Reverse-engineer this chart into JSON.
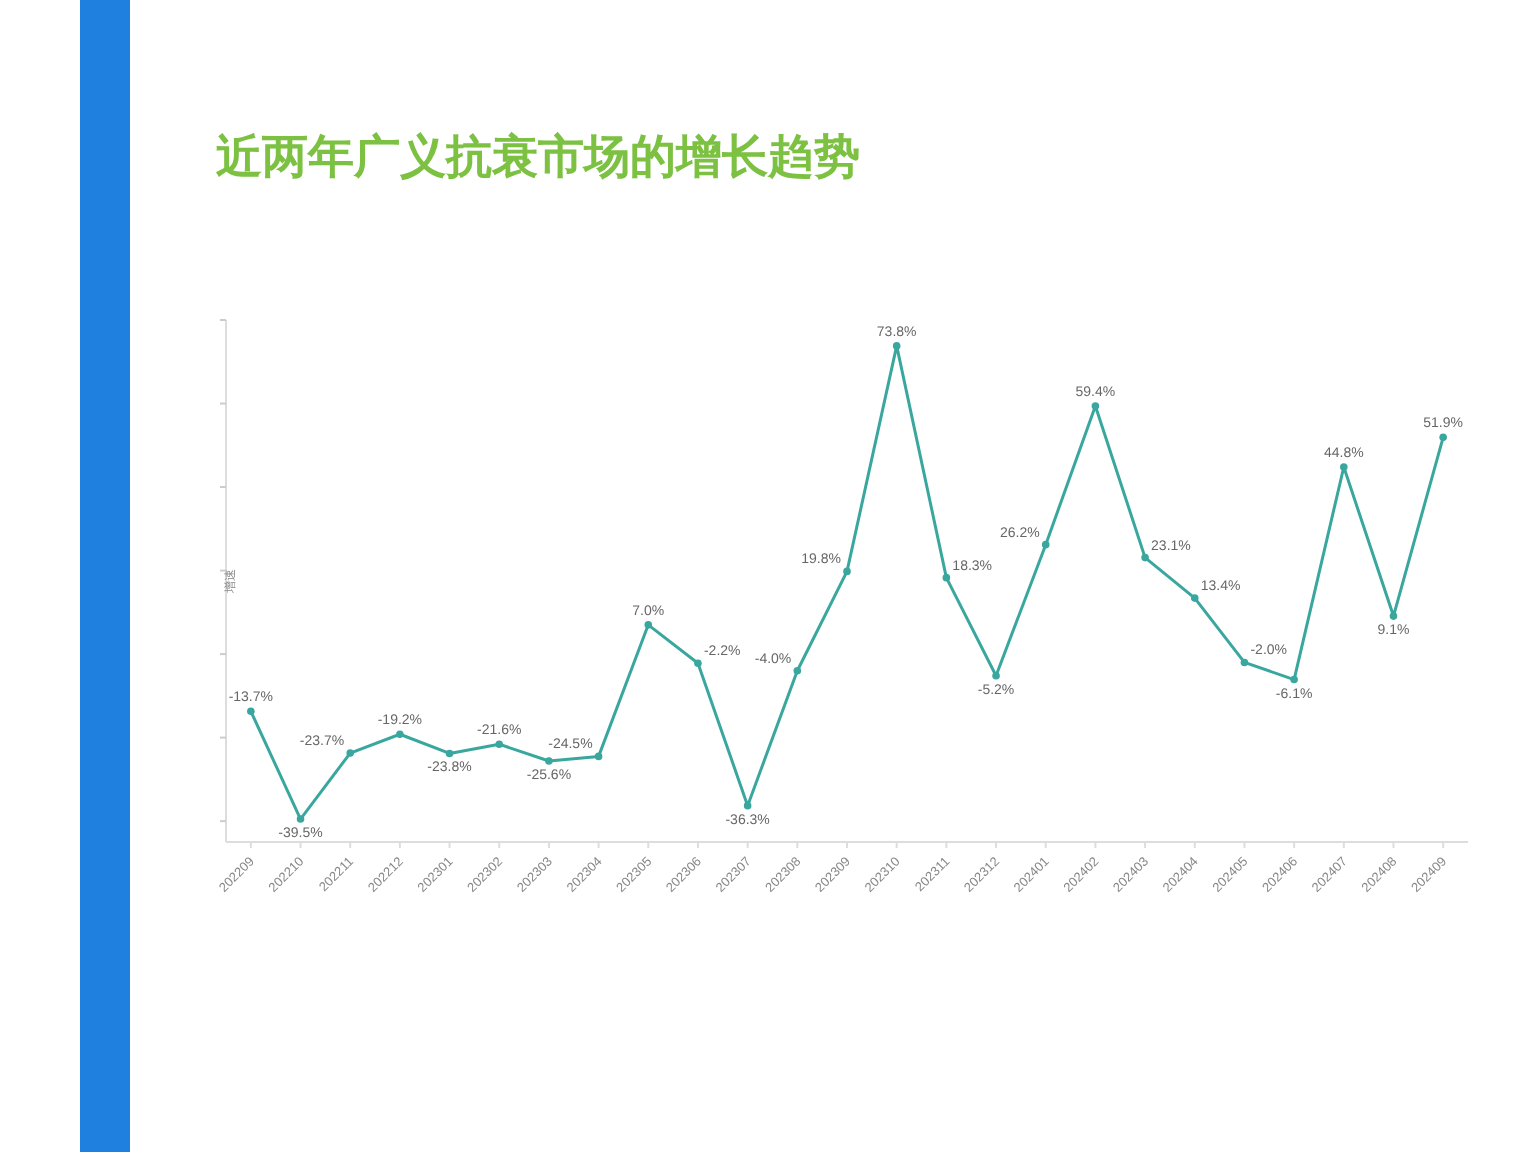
{
  "chart_data": {
    "type": "line",
    "title": "近两年广义抗衰市场的增长趋势",
    "ylabel": "增速",
    "categories": [
      "202209",
      "202210",
      "202211",
      "202212",
      "202301",
      "202302",
      "202303",
      "202304",
      "202305",
      "202306",
      "202307",
      "202308",
      "202309",
      "202310",
      "202311",
      "202312",
      "202401",
      "202402",
      "202403",
      "202404",
      "202405",
      "202406",
      "202407",
      "202408",
      "202409"
    ],
    "series": [
      {
        "color": "#3aa79f",
        "values": [
          -13.7,
          -39.5,
          -23.7,
          -19.2,
          -23.8,
          -21.6,
          -25.6,
          -24.5,
          7.0,
          -2.2,
          -36.3,
          -4.0,
          19.8,
          73.8,
          18.3,
          -5.2,
          26.2,
          59.4,
          23.1,
          13.4,
          -2.0,
          -6.1,
          44.8,
          9.1,
          51.9
        ],
        "value_labels": [
          "-13.7%",
          "-39.5%",
          "-23.7%",
          "-19.2%",
          "-23.8%",
          "-21.6%",
          "-25.6%",
          "-24.5%",
          "7.0%",
          "-2.2%",
          "-36.3%",
          "-4.0%",
          "19.8%",
          "73.8%",
          "18.3%",
          "-5.2%",
          "26.2%",
          "59.4%",
          "23.1%",
          "13.4%",
          "-2.0%",
          "-6.1%",
          "44.8%",
          "9.1%",
          "51.9%"
        ]
      }
    ],
    "ylim": [
      -45,
      80
    ],
    "yticks": [
      {
        "value": -40,
        "label": null
      },
      {
        "value": -20,
        "label": null
      },
      {
        "value": 0,
        "label": null
      },
      {
        "value": 20,
        "label": null
      },
      {
        "value": 40,
        "label": null
      },
      {
        "value": 60,
        "label": null
      },
      {
        "value": 80,
        "label": null
      }
    ],
    "tick_labels": "x",
    "marker": "circle",
    "line_style": "solid"
  }
}
